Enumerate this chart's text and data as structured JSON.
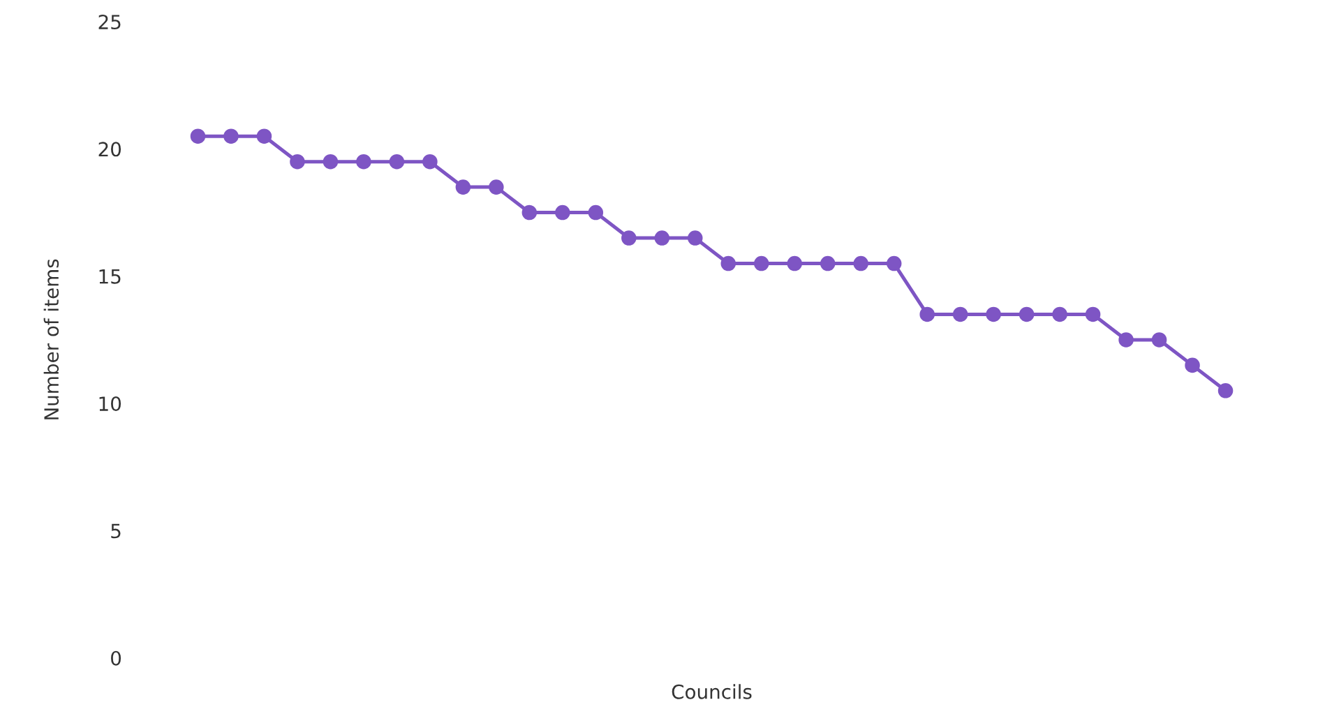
{
  "chart_data": {
    "type": "line",
    "xlabel": "Councils",
    "ylabel": "Number of items",
    "categories": [
      null,
      null,
      null,
      null,
      null,
      null,
      null,
      null,
      null,
      null,
      null,
      null,
      null,
      null,
      null,
      null,
      null,
      null,
      null,
      null,
      null,
      null,
      null,
      null,
      null,
      null,
      null,
      null,
      null,
      null,
      null,
      null
    ],
    "series": [
      {
        "color": "#7e55c4",
        "values": [
          20.5,
          20.5,
          20.5,
          19.5,
          19.5,
          19.5,
          19.5,
          19.5,
          18.5,
          18.5,
          17.5,
          17.5,
          17.5,
          16.5,
          16.5,
          16.5,
          15.5,
          15.5,
          15.5,
          15.5,
          15.5,
          15.5,
          13.5,
          13.5,
          13.5,
          13.5,
          13.5,
          13.5,
          12.5,
          12.5,
          11.5,
          10.5
        ]
      }
    ],
    "ylim": [
      0,
      25
    ],
    "yticks": [
      0,
      5,
      10,
      15,
      20,
      25
    ],
    "marker": "circle",
    "line_style": "solid",
    "grid": false,
    "legend": false
  }
}
